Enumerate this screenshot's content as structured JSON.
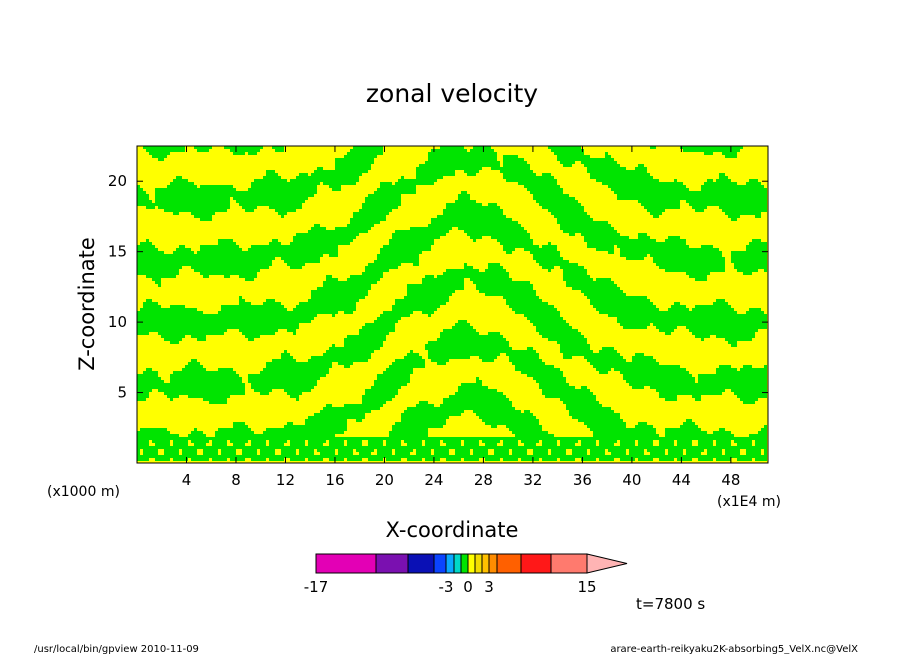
{
  "chart_data": {
    "type": "heatmap",
    "title": "zonal velocity",
    "xlabel": "X-coordinate",
    "ylabel": "Z-coordinate",
    "x_unit_label": "(x1E4 m)",
    "y_unit_label": "(x1000 m)",
    "xlim": [
      0,
      51
    ],
    "ylim": [
      0,
      22.5
    ],
    "x_ticks": [
      4,
      8,
      12,
      16,
      20,
      24,
      28,
      32,
      36,
      40,
      44,
      48
    ],
    "y_ticks": [
      5,
      10,
      15,
      20
    ],
    "x_tick_labels": [
      "4",
      "8",
      "12",
      "16",
      "20",
      "24",
      "28",
      "32",
      "36",
      "40",
      "44",
      "48"
    ],
    "y_tick_labels": [
      "5",
      "10",
      "15",
      "20"
    ],
    "contour_fill_colors": {
      "negative": "#00e400",
      "positive": "#ffff00"
    },
    "colorbar": {
      "levels": [
        -17,
        -11,
        -7,
        -5,
        -3,
        -2,
        -1,
        0,
        1,
        2,
        3,
        5,
        7,
        11,
        15,
        19
      ],
      "colors": [
        "#e300b5",
        "#7a10b0",
        "#0a10b5",
        "#0b44ff",
        "#0aa8ff",
        "#00d8c8",
        "#00e400",
        "#ffff00",
        "#f2dc00",
        "#ffc000",
        "#ff8c00",
        "#ff6000",
        "#ff1818",
        "#ff7a6e",
        "#ffb4b4"
      ],
      "tick_labels": [
        "-17",
        "-3",
        "0",
        "3",
        "15"
      ],
      "tick_values": [
        -17,
        -3,
        0,
        3,
        15
      ]
    },
    "time_label": "t=7800 s"
  },
  "footer": {
    "left": "/usr/local/bin/gpview  2010-11-09",
    "right": "arare-earth-reikyaku2K-absorbing5_VelX.nc@VelX"
  }
}
